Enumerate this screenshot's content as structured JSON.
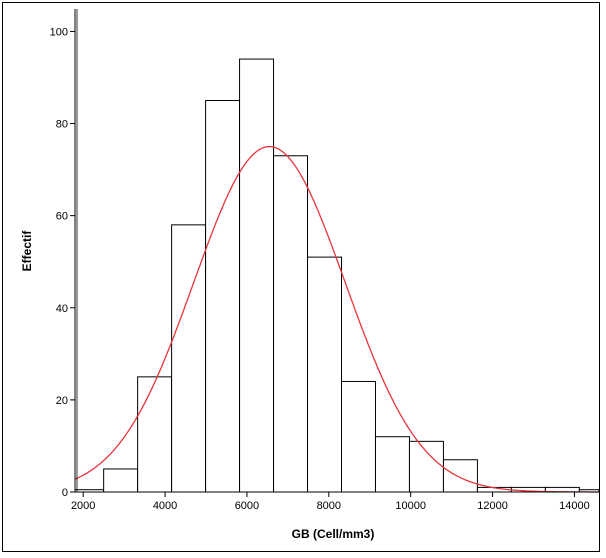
{
  "chart_data": {
    "type": "bar",
    "subtype": "histogram",
    "xlabel": "GB (Cell/mm3)",
    "ylabel": "Effectif",
    "xlim": [
      1800,
      14600
    ],
    "ylim": [
      0,
      104
    ],
    "x_ticks": [
      2000,
      4000,
      6000,
      8000,
      10000,
      12000,
      14000
    ],
    "y_ticks": [
      0,
      20,
      40,
      60,
      80,
      100
    ],
    "bins": [
      {
        "start": 1800,
        "end": 2500,
        "count": 0.5
      },
      {
        "start": 2500,
        "end": 3330,
        "count": 5
      },
      {
        "start": 3330,
        "end": 4160,
        "count": 25
      },
      {
        "start": 4160,
        "end": 4990,
        "count": 58
      },
      {
        "start": 4990,
        "end": 5820,
        "count": 85
      },
      {
        "start": 5820,
        "end": 6650,
        "count": 94
      },
      {
        "start": 6650,
        "end": 7480,
        "count": 73
      },
      {
        "start": 7480,
        "end": 8310,
        "count": 51
      },
      {
        "start": 8310,
        "end": 9140,
        "count": 24
      },
      {
        "start": 9140,
        "end": 9970,
        "count": 12
      },
      {
        "start": 9970,
        "end": 10800,
        "count": 11
      },
      {
        "start": 10800,
        "end": 11630,
        "count": 7
      },
      {
        "start": 11630,
        "end": 12460,
        "count": 1
      },
      {
        "start": 12460,
        "end": 13290,
        "count": 1
      },
      {
        "start": 13290,
        "end": 14120,
        "count": 1
      },
      {
        "start": 14120,
        "end": 14600,
        "count": 0.5
      }
    ],
    "normal_curve": {
      "mean": 6550,
      "sd": 1850,
      "peak": 75,
      "color": "#e8343a"
    },
    "bar_fill": "#ffffff",
    "bar_stroke": "#000000",
    "grid": false,
    "legend": "none"
  }
}
